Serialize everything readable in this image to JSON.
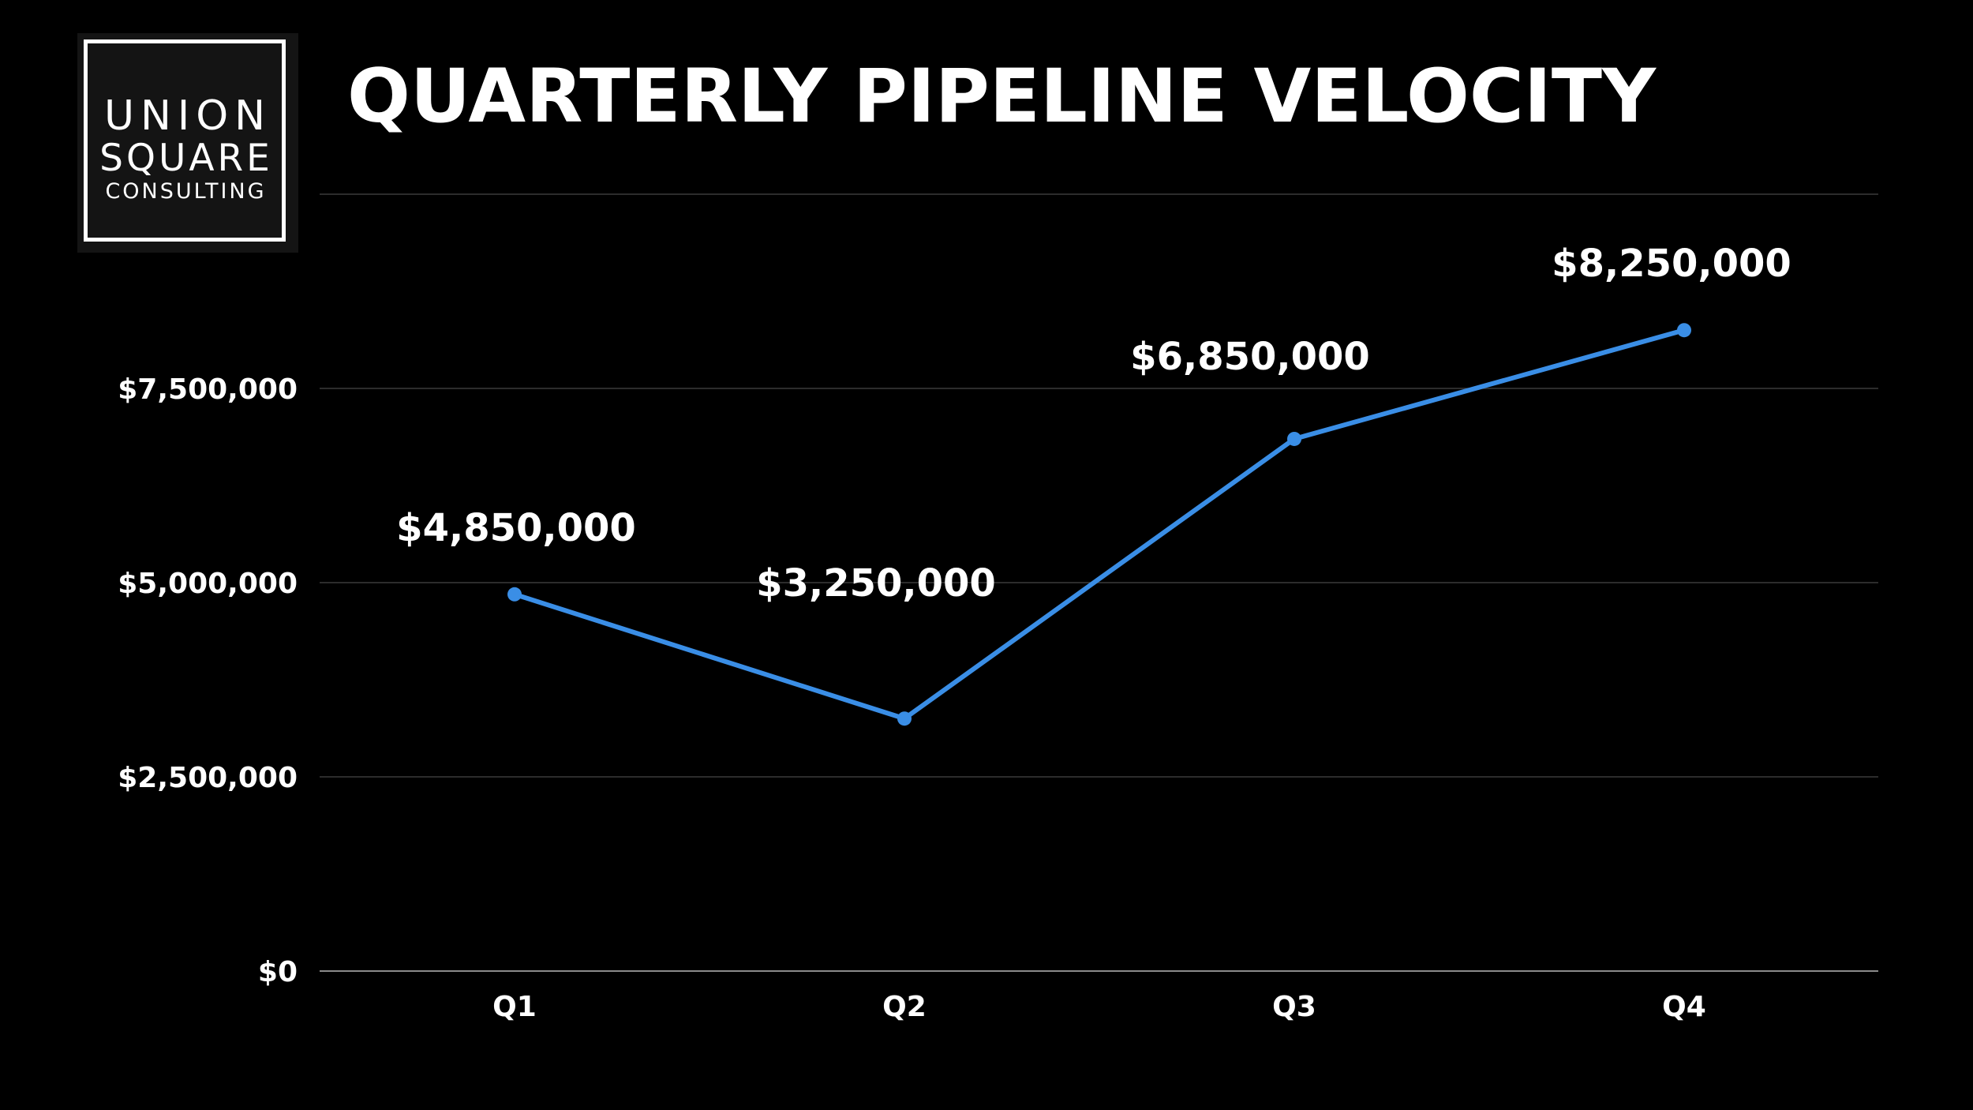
{
  "logo": {
    "line1": "UNION",
    "line2": "SQUARE",
    "line3": "CONSULTING"
  },
  "colors": {
    "background": "#000000",
    "text": "#ffffff",
    "line": "#3a8ee6",
    "grid": "#3a3a3a"
  },
  "chart_data": {
    "type": "line",
    "title": "QUARTERLY PIPELINE VELOCITY",
    "xlabel": "",
    "ylabel": "",
    "categories": [
      "Q1",
      "Q2",
      "Q3",
      "Q4"
    ],
    "series": [
      {
        "values": [
          4850000,
          3250000,
          6850000,
          8250000
        ],
        "data_labels": [
          "$4,850,000",
          "$3,250,000",
          "$6,850,000",
          "$8,250,000"
        ]
      }
    ],
    "ylim": [
      0,
      10000000
    ],
    "yticks": [
      0,
      2500000,
      5000000,
      7500000,
      10000000
    ],
    "ytick_labels": [
      "$0",
      "$2,500,000",
      "$5,000,000",
      "$7,500,000",
      ""
    ],
    "grid": true,
    "legend": "none"
  }
}
